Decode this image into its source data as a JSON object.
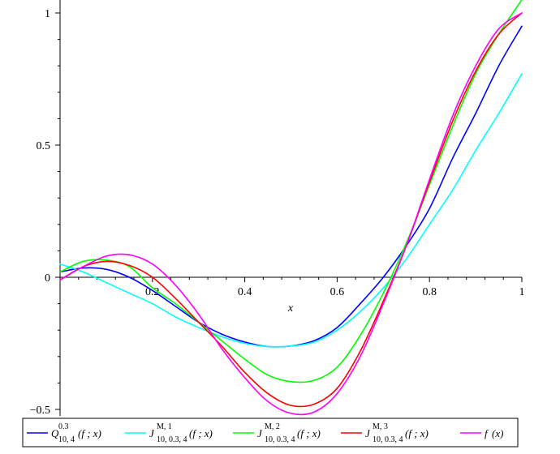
{
  "chart_data": {
    "type": "line",
    "xlabel": "x",
    "ylabel": "",
    "xlim": [
      0,
      1
    ],
    "ylim": [
      -0.5,
      1.05
    ],
    "x_ticks": [
      {
        "value": 0.2,
        "label": "0.2"
      },
      {
        "value": 0.4,
        "label": "0.4"
      },
      {
        "value": 0.6,
        "label": "0.6"
      },
      {
        "value": 0.8,
        "label": "0.8"
      },
      {
        "value": 1.0,
        "label": "1"
      }
    ],
    "y_ticks": [
      {
        "value": -0.5,
        "label": "−0.5"
      },
      {
        "value": 0,
        "label": "0"
      },
      {
        "value": 0.5,
        "label": "0.5"
      },
      {
        "value": 1,
        "label": "1"
      }
    ],
    "grid": false,
    "legend_position": "bottom",
    "series": [
      {
        "color": "#0000ff",
        "legend": {
          "main": "Q",
          "sup": "0.3",
          "sub": "10, 4",
          "args": "(f ; x)"
        },
        "x": [
          0,
          0.05,
          0.1,
          0.15,
          0.2,
          0.25,
          0.3,
          0.35,
          0.4,
          0.45,
          0.5,
          0.55,
          0.6,
          0.65,
          0.7,
          0.75,
          0.8,
          0.85,
          0.9,
          0.95,
          1.0
        ],
        "y": [
          0.02,
          0.035,
          0.03,
          0.0,
          -0.05,
          -0.11,
          -0.17,
          -0.215,
          -0.245,
          -0.262,
          -0.26,
          -0.24,
          -0.19,
          -0.1,
          0.0,
          0.12,
          0.26,
          0.45,
          0.62,
          0.8,
          0.95
        ]
      },
      {
        "color": "#00ffff",
        "legend": {
          "main": "J",
          "sup": "M, 1",
          "sub": "10, 0.3, 4",
          "args": "(f ; x)"
        },
        "x": [
          0,
          0.05,
          0.1,
          0.15,
          0.2,
          0.25,
          0.3,
          0.35,
          0.4,
          0.45,
          0.5,
          0.55,
          0.6,
          0.65,
          0.7,
          0.75,
          0.8,
          0.85,
          0.9,
          0.95,
          1.0
        ],
        "y": [
          0.05,
          0.02,
          -0.02,
          -0.06,
          -0.1,
          -0.15,
          -0.19,
          -0.225,
          -0.25,
          -0.262,
          -0.26,
          -0.245,
          -0.2,
          -0.13,
          -0.04,
          0.07,
          0.2,
          0.33,
          0.48,
          0.62,
          0.77
        ]
      },
      {
        "color": "#00ff00",
        "legend": {
          "main": "J",
          "sup": "M, 2",
          "sub": "10, 0.3, 4",
          "args": "(f ; x)"
        },
        "x": [
          0,
          0.05,
          0.1,
          0.15,
          0.2,
          0.25,
          0.3,
          0.35,
          0.4,
          0.45,
          0.5,
          0.55,
          0.6,
          0.65,
          0.7,
          0.75,
          0.8,
          0.85,
          0.9,
          0.95,
          1.0
        ],
        "y": [
          0.02,
          0.06,
          0.065,
          0.04,
          -0.04,
          -0.1,
          -0.17,
          -0.24,
          -0.31,
          -0.37,
          -0.395,
          -0.39,
          -0.34,
          -0.22,
          -0.06,
          0.13,
          0.35,
          0.57,
          0.77,
          0.92,
          1.05
        ]
      },
      {
        "color": "#ff0000",
        "legend": {
          "main": "J",
          "sup": "M, 3",
          "sub": "10, 0.3, 4",
          "args": "(f ; x)"
        },
        "x": [
          0,
          0.05,
          0.1,
          0.15,
          0.2,
          0.25,
          0.3,
          0.35,
          0.4,
          0.45,
          0.5,
          0.55,
          0.6,
          0.65,
          0.7,
          0.75,
          0.8,
          0.85,
          0.9,
          0.95,
          1.0
        ],
        "y": [
          -0.01,
          0.04,
          0.06,
          0.045,
          0.0,
          -0.08,
          -0.17,
          -0.26,
          -0.36,
          -0.44,
          -0.485,
          -0.48,
          -0.42,
          -0.28,
          -0.09,
          0.12,
          0.36,
          0.59,
          0.78,
          0.92,
          1.0
        ]
      },
      {
        "color": "#ff00ff",
        "legend": {
          "main": "f",
          "sup": "",
          "sub": "",
          "args": "(x)"
        },
        "x": [
          0,
          0.05,
          0.1,
          0.15,
          0.2,
          0.25,
          0.3,
          0.35,
          0.4,
          0.45,
          0.5,
          0.55,
          0.6,
          0.65,
          0.7,
          0.75,
          0.8,
          0.85,
          0.9,
          0.95,
          1.0
        ],
        "y": [
          -0.01,
          0.04,
          0.08,
          0.085,
          0.05,
          -0.03,
          -0.14,
          -0.27,
          -0.38,
          -0.47,
          -0.515,
          -0.51,
          -0.44,
          -0.3,
          -0.1,
          0.12,
          0.37,
          0.61,
          0.8,
          0.94,
          1.0
        ]
      }
    ]
  }
}
